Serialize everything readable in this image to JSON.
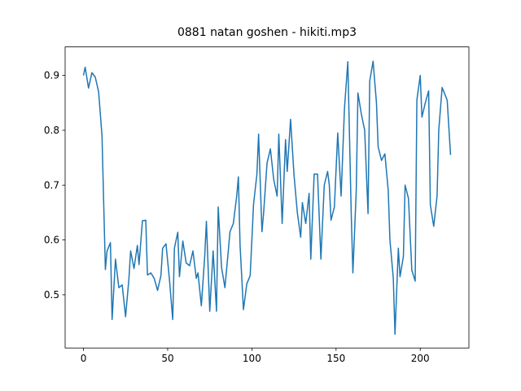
{
  "chart_data": {
    "type": "line",
    "title": "0881 natan goshen - hikiti.mp3",
    "x": [
      0,
      1,
      3,
      5,
      7,
      9,
      11,
      13,
      14,
      16,
      17,
      19,
      21,
      23,
      25,
      27,
      28,
      30,
      32,
      33,
      35,
      37,
      38,
      40,
      42,
      44,
      46,
      47,
      49,
      51,
      53,
      54,
      56,
      57,
      59,
      61,
      63,
      65,
      67,
      68,
      70,
      72,
      73,
      75,
      77,
      79,
      80,
      82,
      84,
      86,
      87,
      89,
      91,
      92,
      93,
      95,
      97,
      99,
      101,
      103,
      104,
      106,
      107,
      109,
      111,
      113,
      115,
      116,
      118,
      120,
      121,
      123,
      125,
      127,
      129,
      130,
      132,
      134,
      135,
      137,
      139,
      141,
      143,
      145,
      146,
      147,
      149,
      151,
      153,
      155,
      157,
      159,
      160,
      162,
      163,
      165,
      167,
      169,
      170,
      172,
      174,
      175,
      177,
      179,
      181,
      182,
      184,
      185,
      187,
      188,
      190,
      191,
      193,
      195,
      197,
      198,
      200,
      201,
      203,
      205,
      206,
      208,
      210,
      211,
      213,
      216,
      218
    ],
    "series": [
      {
        "color": "#1f77b4",
        "values": [
          0.9,
          0.915,
          0.877,
          0.905,
          0.897,
          0.87,
          0.79,
          0.546,
          0.58,
          0.595,
          0.455,
          0.565,
          0.513,
          0.518,
          0.46,
          0.53,
          0.58,
          0.548,
          0.59,
          0.555,
          0.635,
          0.636,
          0.536,
          0.54,
          0.53,
          0.508,
          0.535,
          0.585,
          0.593,
          0.53,
          0.455,
          0.585,
          0.614,
          0.533,
          0.598,
          0.558,
          0.553,
          0.58,
          0.53,
          0.54,
          0.48,
          0.57,
          0.634,
          0.47,
          0.58,
          0.47,
          0.66,
          0.55,
          0.513,
          0.58,
          0.615,
          0.63,
          0.68,
          0.715,
          0.59,
          0.473,
          0.52,
          0.535,
          0.665,
          0.72,
          0.793,
          0.615,
          0.65,
          0.74,
          0.766,
          0.71,
          0.68,
          0.793,
          0.63,
          0.783,
          0.725,
          0.82,
          0.72,
          0.65,
          0.605,
          0.668,
          0.63,
          0.685,
          0.565,
          0.72,
          0.72,
          0.565,
          0.7,
          0.725,
          0.7,
          0.636,
          0.66,
          0.795,
          0.68,
          0.84,
          0.925,
          0.65,
          0.54,
          0.69,
          0.868,
          0.83,
          0.8,
          0.648,
          0.89,
          0.926,
          0.85,
          0.77,
          0.745,
          0.757,
          0.69,
          0.6,
          0.53,
          0.428,
          0.585,
          0.533,
          0.57,
          0.7,
          0.676,
          0.545,
          0.525,
          0.855,
          0.9,
          0.824,
          0.85,
          0.872,
          0.664,
          0.625,
          0.68,
          0.8,
          0.878,
          0.855,
          0.755
        ]
      }
    ],
    "xlim": [
      -10.9,
      228.9
    ],
    "ylim": [
      0.403,
      0.952
    ],
    "xticks": [
      0,
      50,
      100,
      150,
      200
    ],
    "yticks": [
      0.5,
      0.6,
      0.7,
      0.8,
      0.9
    ]
  }
}
